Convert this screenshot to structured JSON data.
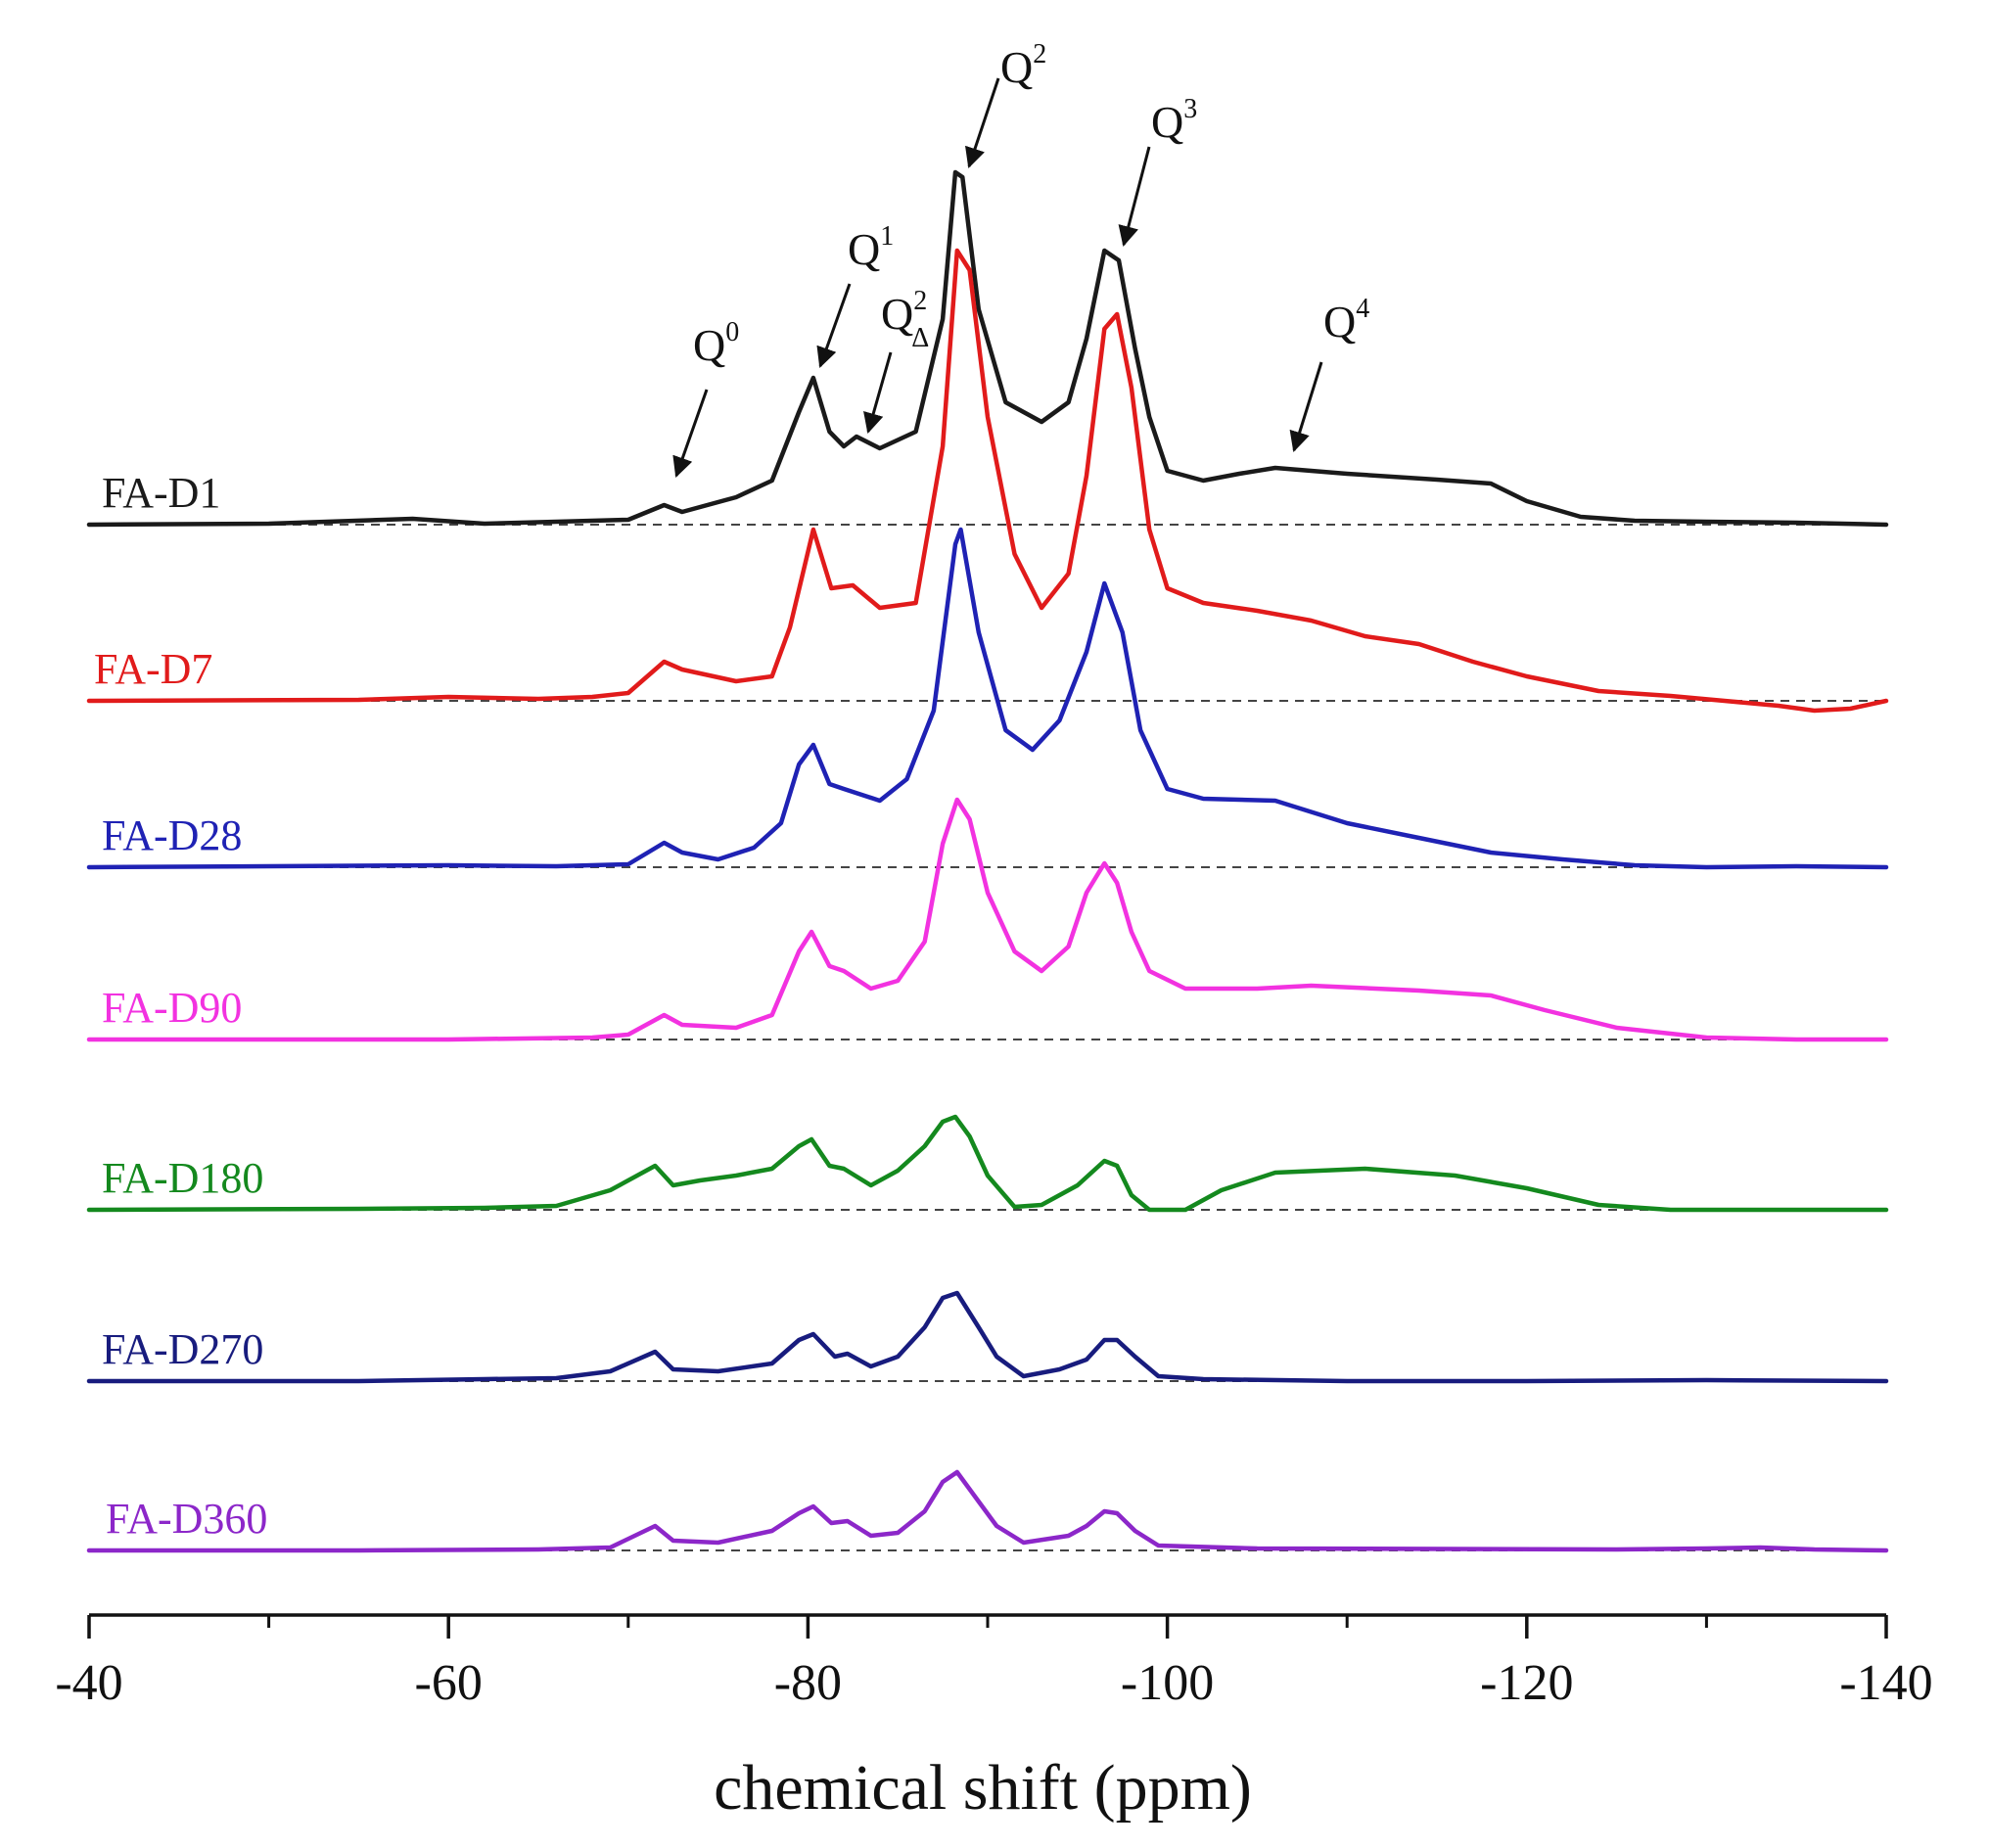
{
  "chart_data": {
    "type": "line",
    "xlabel": "chemical shift (ppm)",
    "xlim": [
      -40,
      -140
    ],
    "xticks": [
      {
        "value": -40,
        "label": "-40"
      },
      {
        "value": -60,
        "label": "-60"
      },
      {
        "value": -80,
        "label": "-80"
      },
      {
        "value": -100,
        "label": "-100"
      },
      {
        "value": -120,
        "label": "-120"
      },
      {
        "value": -140,
        "label": "-140"
      }
    ],
    "minor_ticks": [
      -50,
      -70,
      -90,
      -110,
      -130
    ],
    "series": [
      {
        "name": "FA-D1",
        "color": "#1a1a1a",
        "points": [
          [
            -40,
            0
          ],
          [
            -50,
            1
          ],
          [
            -58,
            6
          ],
          [
            -62,
            1
          ],
          [
            -66,
            3
          ],
          [
            -70,
            5
          ],
          [
            -72,
            20
          ],
          [
            -73,
            13
          ],
          [
            -76,
            28
          ],
          [
            -78,
            45
          ],
          [
            -79.5,
            115
          ],
          [
            -80.3,
            150
          ],
          [
            -81.2,
            95
          ],
          [
            -82,
            80
          ],
          [
            -82.7,
            90
          ],
          [
            -84,
            78
          ],
          [
            -86,
            95
          ],
          [
            -87.5,
            210
          ],
          [
            -88.2,
            360
          ],
          [
            -88.6,
            355
          ],
          [
            -89.5,
            220
          ],
          [
            -91,
            125
          ],
          [
            -93,
            105
          ],
          [
            -94.5,
            125
          ],
          [
            -95.5,
            190
          ],
          [
            -96.5,
            280
          ],
          [
            -97.3,
            270
          ],
          [
            -98.2,
            180
          ],
          [
            -99,
            110
          ],
          [
            -100,
            55
          ],
          [
            -102,
            45
          ],
          [
            -104,
            52
          ],
          [
            -106,
            58
          ],
          [
            -110,
            52
          ],
          [
            -115,
            46
          ],
          [
            -118,
            42
          ],
          [
            -120,
            24
          ],
          [
            -123,
            8
          ],
          [
            -126,
            4
          ],
          [
            -130,
            3
          ],
          [
            -135,
            2
          ],
          [
            -140,
            0
          ]
        ]
      },
      {
        "name": "FA-D7",
        "color": "#e11b1b",
        "points": [
          [
            -40,
            0
          ],
          [
            -55,
            1
          ],
          [
            -60,
            4
          ],
          [
            -65,
            2
          ],
          [
            -68,
            4
          ],
          [
            -70,
            8
          ],
          [
            -72,
            40
          ],
          [
            -73,
            32
          ],
          [
            -76,
            20
          ],
          [
            -78,
            25
          ],
          [
            -79,
            75
          ],
          [
            -80.3,
            175
          ],
          [
            -81.3,
            115
          ],
          [
            -82.5,
            118
          ],
          [
            -84,
            95
          ],
          [
            -86,
            100
          ],
          [
            -87.5,
            260
          ],
          [
            -88.3,
            460
          ],
          [
            -89,
            440
          ],
          [
            -90,
            290
          ],
          [
            -91.5,
            150
          ],
          [
            -93,
            95
          ],
          [
            -94.5,
            130
          ],
          [
            -95.5,
            230
          ],
          [
            -96.5,
            380
          ],
          [
            -97.2,
            395
          ],
          [
            -98,
            320
          ],
          [
            -99,
            175
          ],
          [
            -100,
            115
          ],
          [
            -102,
            100
          ],
          [
            -105,
            92
          ],
          [
            -108,
            82
          ],
          [
            -111,
            66
          ],
          [
            -114,
            58
          ],
          [
            -117,
            40
          ],
          [
            -120,
            25
          ],
          [
            -124,
            10
          ],
          [
            -128,
            5
          ],
          [
            -131,
            0
          ],
          [
            -134,
            -5
          ],
          [
            -136,
            -10
          ],
          [
            -138,
            -8
          ],
          [
            -140,
            0
          ]
        ]
      },
      {
        "name": "FA-D28",
        "color": "#1f22b4",
        "points": [
          [
            -40,
            0
          ],
          [
            -50,
            1
          ],
          [
            -60,
            2
          ],
          [
            -66,
            1
          ],
          [
            -70,
            3
          ],
          [
            -72,
            25
          ],
          [
            -73,
            15
          ],
          [
            -75,
            8
          ],
          [
            -77,
            20
          ],
          [
            -78.5,
            45
          ],
          [
            -79.5,
            105
          ],
          [
            -80.3,
            125
          ],
          [
            -81.2,
            85
          ],
          [
            -82,
            80
          ],
          [
            -84,
            68
          ],
          [
            -85.5,
            90
          ],
          [
            -87,
            160
          ],
          [
            -88.2,
            330
          ],
          [
            -88.5,
            345
          ],
          [
            -89.5,
            240
          ],
          [
            -91,
            140
          ],
          [
            -92.5,
            120
          ],
          [
            -94,
            150
          ],
          [
            -95.5,
            220
          ],
          [
            -96.5,
            290
          ],
          [
            -97.5,
            240
          ],
          [
            -98.5,
            140
          ],
          [
            -100,
            80
          ],
          [
            -102,
            70
          ],
          [
            -106,
            68
          ],
          [
            -110,
            45
          ],
          [
            -114,
            30
          ],
          [
            -118,
            15
          ],
          [
            -122,
            8
          ],
          [
            -126,
            2
          ],
          [
            -130,
            0
          ],
          [
            -135,
            1
          ],
          [
            -140,
            0
          ]
        ]
      },
      {
        "name": "FA-D90",
        "color": "#f232e0",
        "points": [
          [
            -40,
            0
          ],
          [
            -60,
            0
          ],
          [
            -68,
            2
          ],
          [
            -70,
            5
          ],
          [
            -72,
            25
          ],
          [
            -73,
            15
          ],
          [
            -76,
            12
          ],
          [
            -78,
            25
          ],
          [
            -79.5,
            90
          ],
          [
            -80.2,
            110
          ],
          [
            -81.2,
            75
          ],
          [
            -82,
            70
          ],
          [
            -83.5,
            52
          ],
          [
            -85,
            60
          ],
          [
            -86.5,
            100
          ],
          [
            -87.5,
            200
          ],
          [
            -88.3,
            245
          ],
          [
            -89,
            225
          ],
          [
            -90,
            150
          ],
          [
            -91.5,
            90
          ],
          [
            -93,
            70
          ],
          [
            -94.5,
            95
          ],
          [
            -95.5,
            150
          ],
          [
            -96.5,
            180
          ],
          [
            -97.2,
            160
          ],
          [
            -98,
            110
          ],
          [
            -99,
            70
          ],
          [
            -101,
            52
          ],
          [
            -105,
            52
          ],
          [
            -108,
            55
          ],
          [
            -114,
            50
          ],
          [
            -118,
            45
          ],
          [
            -121,
            30
          ],
          [
            -125,
            12
          ],
          [
            -130,
            2
          ],
          [
            -135,
            0
          ],
          [
            -140,
            0
          ]
        ]
      },
      {
        "name": "FA-D180",
        "color": "#14891e",
        "points": [
          [
            -40,
            0
          ],
          [
            -55,
            1
          ],
          [
            -62,
            2
          ],
          [
            -66,
            4
          ],
          [
            -69,
            20
          ],
          [
            -71.5,
            45
          ],
          [
            -72.5,
            25
          ],
          [
            -74,
            30
          ],
          [
            -76,
            35
          ],
          [
            -78,
            42
          ],
          [
            -79.5,
            65
          ],
          [
            -80.2,
            72
          ],
          [
            -81.2,
            45
          ],
          [
            -82,
            42
          ],
          [
            -83.5,
            25
          ],
          [
            -85,
            40
          ],
          [
            -86.5,
            65
          ],
          [
            -87.5,
            90
          ],
          [
            -88.2,
            95
          ],
          [
            -89,
            75
          ],
          [
            -90,
            35
          ],
          [
            -91.5,
            3
          ],
          [
            -93,
            5
          ],
          [
            -95,
            25
          ],
          [
            -96.5,
            50
          ],
          [
            -97.2,
            45
          ],
          [
            -98,
            15
          ],
          [
            -99,
            0
          ],
          [
            -101,
            0
          ],
          [
            -103,
            20
          ],
          [
            -106,
            38
          ],
          [
            -111,
            42
          ],
          [
            -116,
            35
          ],
          [
            -120,
            22
          ],
          [
            -124,
            5
          ],
          [
            -128,
            0
          ],
          [
            -140,
            0
          ]
        ]
      },
      {
        "name": "FA-D270",
        "color": "#181c7e",
        "points": [
          [
            -40,
            0
          ],
          [
            -55,
            0
          ],
          [
            -62,
            2
          ],
          [
            -66,
            3
          ],
          [
            -69,
            10
          ],
          [
            -71.5,
            30
          ],
          [
            -72.5,
            12
          ],
          [
            -75,
            10
          ],
          [
            -78,
            18
          ],
          [
            -79.5,
            42
          ],
          [
            -80.3,
            48
          ],
          [
            -81.5,
            25
          ],
          [
            -82.2,
            28
          ],
          [
            -83.5,
            15
          ],
          [
            -85,
            25
          ],
          [
            -86.5,
            55
          ],
          [
            -87.5,
            85
          ],
          [
            -88.3,
            90
          ],
          [
            -89.5,
            55
          ],
          [
            -90.5,
            25
          ],
          [
            -92,
            5
          ],
          [
            -94,
            12
          ],
          [
            -95.5,
            22
          ],
          [
            -96.5,
            42
          ],
          [
            -97.2,
            42
          ],
          [
            -98.2,
            25
          ],
          [
            -99.5,
            5
          ],
          [
            -102,
            2
          ],
          [
            -110,
            0
          ],
          [
            -120,
            0
          ],
          [
            -130,
            1
          ],
          [
            -140,
            0
          ]
        ]
      },
      {
        "name": "FA-D360",
        "color": "#8c27c9",
        "points": [
          [
            -40,
            0
          ],
          [
            -55,
            0
          ],
          [
            -65,
            1
          ],
          [
            -69,
            3
          ],
          [
            -71.5,
            25
          ],
          [
            -72.5,
            10
          ],
          [
            -75,
            8
          ],
          [
            -78,
            20
          ],
          [
            -79.5,
            38
          ],
          [
            -80.3,
            45
          ],
          [
            -81.3,
            28
          ],
          [
            -82.2,
            30
          ],
          [
            -83.5,
            15
          ],
          [
            -85,
            18
          ],
          [
            -86.5,
            40
          ],
          [
            -87.5,
            70
          ],
          [
            -88.3,
            80
          ],
          [
            -89.5,
            50
          ],
          [
            -90.5,
            25
          ],
          [
            -92,
            8
          ],
          [
            -94.5,
            15
          ],
          [
            -95.5,
            25
          ],
          [
            -96.5,
            40
          ],
          [
            -97.2,
            38
          ],
          [
            -98.2,
            20
          ],
          [
            -99.5,
            5
          ],
          [
            -105,
            2
          ],
          [
            -125,
            1
          ],
          [
            -130,
            2
          ],
          [
            -133,
            3
          ],
          [
            -136,
            1
          ],
          [
            -140,
            0
          ]
        ]
      }
    ],
    "annotations": [
      {
        "label": "Q",
        "sup": "0",
        "sub": ""
      },
      {
        "label": "Q",
        "sup": "1",
        "sub": ""
      },
      {
        "label": "Q",
        "sup": "2",
        "sub": "Δ"
      },
      {
        "label": "Q",
        "sup": "2",
        "sub": ""
      },
      {
        "label": "Q",
        "sup": "3",
        "sub": ""
      },
      {
        "label": "Q",
        "sup": "4",
        "sub": ""
      }
    ]
  }
}
